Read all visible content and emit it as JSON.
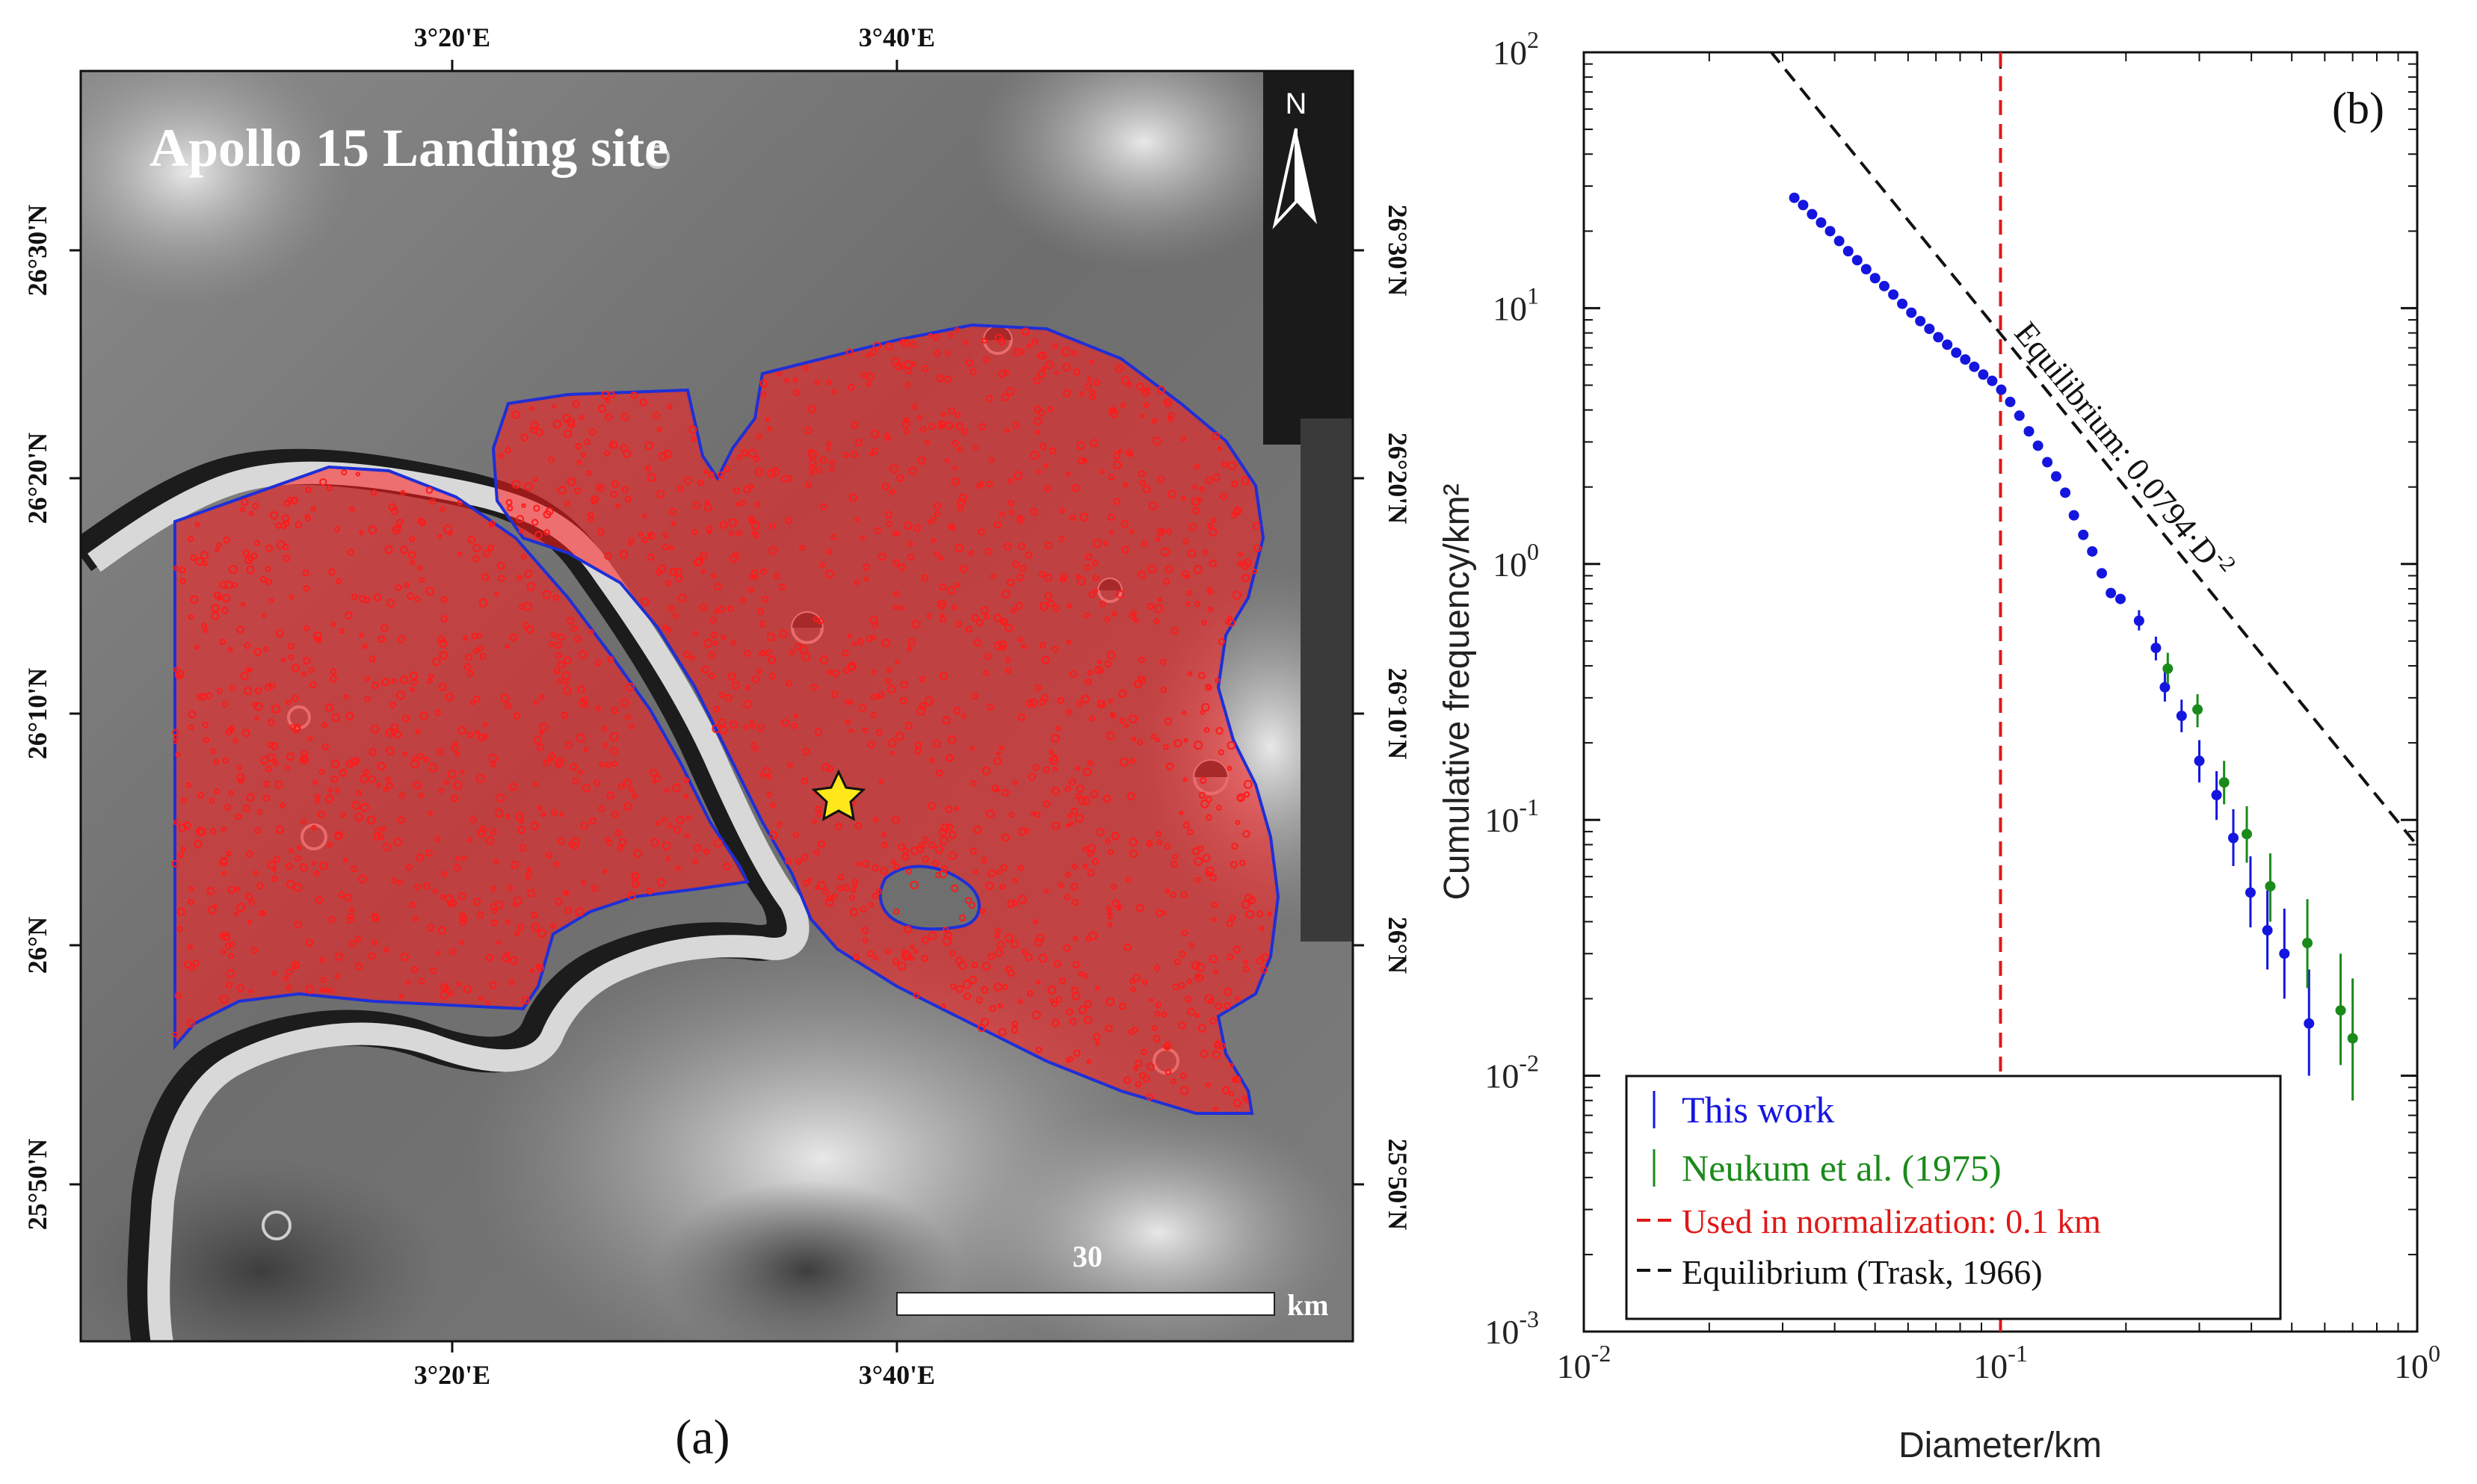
{
  "panel_a": {
    "title": "Apollo 15 Landing site",
    "label": "(a)",
    "north_label": "N",
    "top_ticks": [
      "3°20'E",
      "3°40'E"
    ],
    "bottom_ticks": [
      "3°20'E",
      "3°40'E"
    ],
    "left_ticks": [
      "26°30'N",
      "26°20'N",
      "26°10'N",
      "26°N",
      "25°50'N"
    ],
    "right_ticks": [
      "26°30'N",
      "26°20'N",
      "26°10'N",
      "26°N",
      "25°50'N"
    ],
    "scale_value": "30",
    "scale_unit": "km",
    "colors": {
      "region_outline": "#1f2fd6",
      "crater_marks": "#ff1a1a",
      "landing_star": "#ffe81a"
    }
  },
  "panel_b": {
    "label": "(b)"
  },
  "chart_data": {
    "type": "scatter",
    "xscale": "log",
    "yscale": "log",
    "xlim": [
      0.01,
      1
    ],
    "ylim": [
      0.001,
      100
    ],
    "xlabel": "Diameter/km",
    "ylabel": "Cumulative frequency/km²",
    "x_ticks": [
      {
        "base": "10",
        "exp": "-2"
      },
      {
        "base": "10",
        "exp": "-1"
      },
      {
        "base": "10",
        "exp": "0"
      }
    ],
    "y_ticks": [
      {
        "base": "10",
        "exp": "-3"
      },
      {
        "base": "10",
        "exp": "-2"
      },
      {
        "base": "10",
        "exp": "-1"
      },
      {
        "base": "10",
        "exp": "0"
      },
      {
        "base": "10",
        "exp": "1"
      },
      {
        "base": "10",
        "exp": "2"
      }
    ],
    "series": [
      {
        "name": "This work",
        "color": "#1515e0",
        "points": [
          [
            0.032,
            27.0
          ],
          [
            0.0336,
            25.3
          ],
          [
            0.0353,
            23.3
          ],
          [
            0.0371,
            21.6
          ],
          [
            0.039,
            20.0
          ],
          [
            0.041,
            18.3
          ],
          [
            0.0431,
            16.7
          ],
          [
            0.0453,
            15.4
          ],
          [
            0.0476,
            14.2
          ],
          [
            0.05,
            13.1
          ],
          [
            0.0526,
            12.2
          ],
          [
            0.0553,
            11.3
          ],
          [
            0.0581,
            10.4
          ],
          [
            0.0611,
            9.6
          ],
          [
            0.0642,
            8.9
          ],
          [
            0.0675,
            8.3
          ],
          [
            0.0709,
            7.7
          ],
          [
            0.0745,
            7.2
          ],
          [
            0.0783,
            6.7
          ],
          [
            0.0823,
            6.3
          ],
          [
            0.0865,
            5.9
          ],
          [
            0.0909,
            5.5
          ],
          [
            0.0955,
            5.2
          ],
          [
            0.1004,
            4.8
          ],
          [
            0.1055,
            4.3
          ],
          [
            0.111,
            3.8
          ],
          [
            0.117,
            3.3
          ],
          [
            0.123,
            2.9
          ],
          [
            0.1295,
            2.5
          ],
          [
            0.136,
            2.2
          ],
          [
            0.143,
            1.9
          ],
          [
            0.15,
            1.55
          ],
          [
            0.158,
            1.3
          ],
          [
            0.166,
            1.12
          ],
          [
            0.175,
            0.92
          ],
          [
            0.184,
            0.77
          ],
          [
            0.194,
            0.73
          ]
        ],
        "points_with_error": [
          {
            "x": 0.215,
            "y": 0.6,
            "ylo": 0.55,
            "yhi": 0.66
          },
          {
            "x": 0.236,
            "y": 0.47,
            "ylo": 0.42,
            "yhi": 0.52
          },
          {
            "x": 0.248,
            "y": 0.33,
            "ylo": 0.29,
            "yhi": 0.38
          },
          {
            "x": 0.272,
            "y": 0.255,
            "ylo": 0.22,
            "yhi": 0.295
          },
          {
            "x": 0.3,
            "y": 0.17,
            "ylo": 0.14,
            "yhi": 0.205
          },
          {
            "x": 0.33,
            "y": 0.125,
            "ylo": 0.1,
            "yhi": 0.155
          },
          {
            "x": 0.362,
            "y": 0.085,
            "ylo": 0.066,
            "yhi": 0.11
          },
          {
            "x": 0.398,
            "y": 0.052,
            "ylo": 0.038,
            "yhi": 0.072
          },
          {
            "x": 0.437,
            "y": 0.037,
            "ylo": 0.026,
            "yhi": 0.053
          },
          {
            "x": 0.48,
            "y": 0.03,
            "ylo": 0.02,
            "yhi": 0.045
          },
          {
            "x": 0.55,
            "y": 0.016,
            "ylo": 0.01,
            "yhi": 0.026
          }
        ]
      },
      {
        "name": "Neukum et al. (1975)",
        "color": "#1a8a1a",
        "points_with_error": [
          {
            "x": 0.252,
            "y": 0.39,
            "ylo": 0.34,
            "yhi": 0.45
          },
          {
            "x": 0.297,
            "y": 0.27,
            "ylo": 0.23,
            "yhi": 0.31
          },
          {
            "x": 0.344,
            "y": 0.14,
            "ylo": 0.115,
            "yhi": 0.17
          },
          {
            "x": 0.39,
            "y": 0.088,
            "ylo": 0.068,
            "yhi": 0.113
          },
          {
            "x": 0.444,
            "y": 0.055,
            "ylo": 0.04,
            "yhi": 0.074
          },
          {
            "x": 0.545,
            "y": 0.033,
            "ylo": 0.022,
            "yhi": 0.049
          },
          {
            "x": 0.655,
            "y": 0.018,
            "ylo": 0.011,
            "yhi": 0.03
          },
          {
            "x": 0.7,
            "y": 0.014,
            "ylo": 0.008,
            "yhi": 0.024
          }
        ]
      }
    ],
    "lines": [
      {
        "name": "Used in normalization: 0.1 km",
        "color": "#e01818",
        "style": "dashed",
        "x": 0.1
      },
      {
        "name": "Equilibrium (Trask, 1966)",
        "color": "#111111",
        "style": "dashed",
        "coef": 0.0794,
        "power": -2,
        "x_range": [
          0.028,
          1.0
        ]
      }
    ],
    "annotation": {
      "text": "Equilibrium: 0.0794·D",
      "sup": "-2"
    },
    "legend_placement": "bottom-left",
    "grid": false
  }
}
